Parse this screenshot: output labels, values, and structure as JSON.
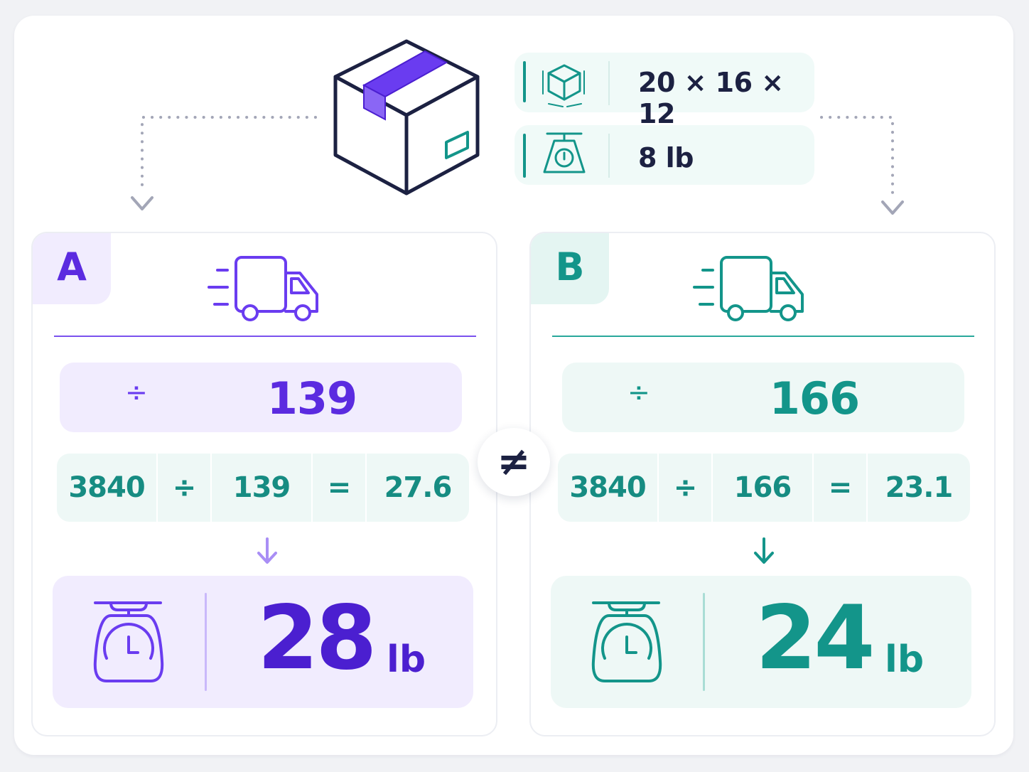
{
  "package": {
    "dimensions": "20 × 16 × 12",
    "weight": "8 lb",
    "dimensions_icon": "cube-dimensions-icon",
    "weight_icon": "scale-icon",
    "box_icon": "package-box-icon"
  },
  "carriers": [
    {
      "label": "A",
      "color": "#5b2be0",
      "divisor_symbol": "÷",
      "divisor": "139",
      "calc": {
        "volume": "3840",
        "op": "÷",
        "divisor": "139",
        "eq": "=",
        "result": "27.6"
      },
      "billable_value": "28",
      "billable_unit": "lb",
      "truck_icon": "delivery-truck-icon",
      "scale_icon": "kitchen-scale-icon"
    },
    {
      "label": "B",
      "color": "#13958a",
      "divisor_symbol": "÷",
      "divisor": "166",
      "calc": {
        "volume": "3840",
        "op": "÷",
        "divisor": "166",
        "eq": "=",
        "result": "23.1"
      },
      "billable_value": "24",
      "billable_unit": "lb",
      "truck_icon": "delivery-truck-icon",
      "scale_icon": "kitchen-scale-icon"
    }
  ],
  "comparison_symbol": "≠"
}
